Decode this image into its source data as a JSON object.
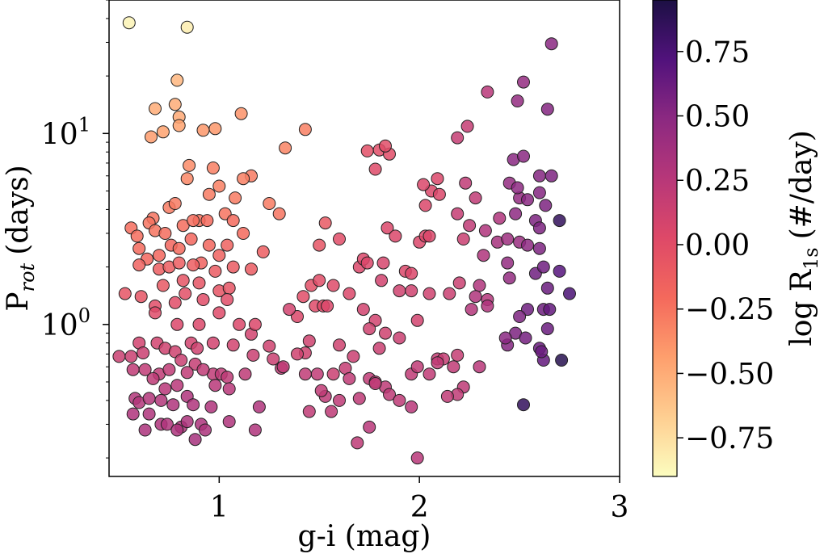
{
  "chart_data": {
    "type": "scatter",
    "title": "",
    "xlabel": "g-i (mag)",
    "ylabel": "P_rot (days)",
    "ylabel_main": "P",
    "ylabel_sub": "rot",
    "ylabel_unit": "(days)",
    "xlim": [
      0.45,
      3.0
    ],
    "ylim": [
      0.16,
      50
    ],
    "yscale": "log",
    "x_ticks": [
      {
        "value": 1,
        "label": "1"
      },
      {
        "value": 2,
        "label": "2"
      },
      {
        "value": 3,
        "label": "3"
      }
    ],
    "y_ticks": [
      {
        "value": 1,
        "label": "10",
        "exp": "0"
      },
      {
        "value": 10,
        "label": "10",
        "exp": "1"
      }
    ],
    "colorbar": {
      "label": "log R_1s (#/day)",
      "label_main": "log R",
      "label_sub": "1s",
      "label_unit": "(#/day)",
      "range": [
        -0.9,
        0.95
      ],
      "colormap": "magma_r",
      "ticks": [
        {
          "value": 0.75,
          "label": "0.75"
        },
        {
          "value": 0.5,
          "label": "0.50"
        },
        {
          "value": 0.25,
          "label": "0.25"
        },
        {
          "value": 0.0,
          "label": "0.00"
        },
        {
          "value": -0.25,
          "label": "−0.25"
        },
        {
          "value": -0.5,
          "label": "−0.50"
        },
        {
          "value": -0.75,
          "label": "−0.75"
        }
      ]
    },
    "points": [
      [
        0.55,
        38,
        -0.85
      ],
      [
        0.84,
        36,
        -0.82
      ],
      [
        0.79,
        19,
        -0.55
      ],
      [
        0.68,
        13.5,
        -0.5
      ],
      [
        0.78,
        14.2,
        -0.5
      ],
      [
        0.8,
        12.2,
        -0.48
      ],
      [
        0.72,
        10.2,
        -0.45
      ],
      [
        0.66,
        9.6,
        -0.42
      ],
      [
        0.8,
        11,
        -0.45
      ],
      [
        0.92,
        10.4,
        -0.4
      ],
      [
        0.98,
        10.6,
        -0.4
      ],
      [
        1.11,
        12.7,
        -0.38
      ],
      [
        1.43,
        10.5,
        -0.3
      ],
      [
        1.33,
        8.4,
        -0.32
      ],
      [
        0.85,
        6.8,
        -0.35
      ],
      [
        0.84,
        5.8,
        -0.33
      ],
      [
        0.97,
        6.6,
        -0.3
      ],
      [
        1.16,
        6,
        -0.28
      ],
      [
        1.12,
        5.8,
        -0.3
      ],
      [
        1.0,
        5.3,
        -0.3
      ],
      [
        0.95,
        4.8,
        -0.28
      ],
      [
        1.08,
        4.6,
        -0.28
      ],
      [
        1.25,
        4.3,
        -0.28
      ],
      [
        1.3,
        3.8,
        -0.25
      ],
      [
        1.03,
        3.8,
        -0.25
      ],
      [
        0.9,
        3.5,
        -0.25
      ],
      [
        0.75,
        4.1,
        -0.28
      ],
      [
        0.78,
        4.3,
        -0.28
      ],
      [
        0.67,
        3.6,
        -0.25
      ],
      [
        0.65,
        3.4,
        -0.25
      ],
      [
        0.56,
        3.2,
        -0.22
      ],
      [
        0.59,
        2.9,
        -0.22
      ],
      [
        0.68,
        3.1,
        -0.25
      ],
      [
        0.73,
        3.0,
        -0.22
      ],
      [
        0.82,
        3.3,
        -0.22
      ],
      [
        0.87,
        3.5,
        -0.22
      ],
      [
        0.94,
        3.5,
        -0.2
      ],
      [
        1.07,
        3.5,
        -0.2
      ],
      [
        1.12,
        3.0,
        -0.2
      ],
      [
        0.6,
        2.5,
        -0.2
      ],
      [
        0.64,
        2.2,
        -0.18
      ],
      [
        0.7,
        2.3,
        -0.18
      ],
      [
        0.76,
        2.6,
        -0.18
      ],
      [
        0.8,
        2.5,
        -0.2
      ],
      [
        0.86,
        2.8,
        -0.18
      ],
      [
        0.95,
        2.6,
        -0.18
      ],
      [
        1.04,
        2.6,
        -0.15
      ],
      [
        1.0,
        2.3,
        -0.15
      ],
      [
        0.91,
        2.1,
        -0.15
      ],
      [
        0.6,
        2.05,
        -0.15
      ],
      [
        0.7,
        1.95,
        -0.12
      ],
      [
        0.75,
        2.0,
        -0.12
      ],
      [
        0.8,
        2.1,
        -0.12
      ],
      [
        0.87,
        2.05,
        -0.12
      ],
      [
        0.98,
        1.9,
        -0.1
      ],
      [
        1.07,
        2.0,
        -0.1
      ],
      [
        1.16,
        1.95,
        -0.1
      ],
      [
        1.22,
        2.4,
        -0.12
      ],
      [
        0.72,
        1.6,
        -0.08
      ],
      [
        0.82,
        1.7,
        -0.05
      ],
      [
        0.9,
        1.65,
        -0.05
      ],
      [
        1.0,
        1.5,
        -0.05
      ],
      [
        1.05,
        1.55,
        -0.05
      ],
      [
        0.61,
        1.4,
        -0.05
      ],
      [
        0.53,
        1.45,
        -0.05
      ],
      [
        0.68,
        1.25,
        0.0
      ],
      [
        0.78,
        1.3,
        0.0
      ],
      [
        0.83,
        1.45,
        -0.02
      ],
      [
        0.92,
        1.35,
        0.0
      ],
      [
        1.04,
        1.35,
        0.0
      ],
      [
        0.68,
        1.15,
        0.02
      ],
      [
        0.79,
        1.0,
        0.05
      ],
      [
        0.9,
        1.0,
        0.05
      ],
      [
        1.0,
        1.15,
        0.02
      ],
      [
        1.1,
        1.0,
        0.05
      ],
      [
        0.6,
        0.8,
        0.1
      ],
      [
        0.69,
        0.8,
        0.1
      ],
      [
        0.73,
        0.75,
        0.12
      ],
      [
        0.78,
        0.72,
        0.12
      ],
      [
        0.86,
        0.8,
        0.1
      ],
      [
        0.89,
        0.75,
        0.12
      ],
      [
        0.97,
        0.8,
        0.1
      ],
      [
        1.07,
        0.78,
        0.1
      ],
      [
        0.56,
        0.68,
        0.15
      ],
      [
        0.62,
        0.71,
        0.15
      ],
      [
        0.5,
        0.68,
        0.15
      ],
      [
        0.81,
        0.65,
        0.15
      ],
      [
        0.88,
        0.62,
        0.18
      ],
      [
        0.97,
        0.55,
        0.2
      ],
      [
        0.57,
        0.58,
        0.2
      ],
      [
        0.63,
        0.58,
        0.2
      ],
      [
        0.7,
        0.55,
        0.2
      ],
      [
        0.67,
        0.52,
        0.22
      ],
      [
        0.75,
        0.58,
        0.2
      ],
      [
        0.84,
        0.56,
        0.2
      ],
      [
        0.92,
        0.58,
        0.2
      ],
      [
        1.01,
        0.55,
        0.22
      ],
      [
        1.04,
        0.53,
        0.22
      ],
      [
        1.13,
        0.55,
        0.22
      ],
      [
        0.79,
        0.48,
        0.25
      ],
      [
        0.73,
        0.46,
        0.25
      ],
      [
        0.98,
        0.48,
        0.25
      ],
      [
        1.05,
        0.46,
        0.25
      ],
      [
        0.58,
        0.41,
        0.28
      ],
      [
        0.6,
        0.39,
        0.28
      ],
      [
        0.65,
        0.41,
        0.28
      ],
      [
        0.71,
        0.4,
        0.28
      ],
      [
        0.77,
        0.38,
        0.3
      ],
      [
        0.84,
        0.42,
        0.3
      ],
      [
        0.87,
        0.38,
        0.3
      ],
      [
        0.96,
        0.37,
        0.3
      ],
      [
        0.57,
        0.34,
        0.3
      ],
      [
        0.65,
        0.34,
        0.3
      ],
      [
        0.71,
        0.3,
        0.3
      ],
      [
        0.74,
        0.3,
        0.3
      ],
      [
        0.81,
        0.29,
        0.32
      ],
      [
        0.84,
        0.31,
        0.32
      ],
      [
        0.91,
        0.3,
        0.32
      ],
      [
        0.63,
        0.28,
        0.32
      ],
      [
        0.79,
        0.28,
        0.32
      ],
      [
        0.93,
        0.28,
        0.32
      ],
      [
        1.05,
        0.31,
        0.3
      ],
      [
        1.18,
        0.28,
        0.3
      ],
      [
        0.88,
        0.25,
        0.35
      ],
      [
        1.2,
        0.37,
        0.3
      ],
      [
        1.17,
        0.69,
        0.15
      ],
      [
        1.25,
        0.77,
        0.12
      ],
      [
        1.16,
        0.89,
        0.1
      ],
      [
        1.27,
        0.66,
        0.15
      ],
      [
        1.31,
        0.59,
        0.2
      ],
      [
        1.32,
        0.6,
        0.2
      ],
      [
        1.18,
        1.0,
        0.05
      ],
      [
        1.39,
        1.1,
        0.05
      ],
      [
        1.42,
        1.4,
        0.0
      ],
      [
        1.46,
        1.6,
        -0.02
      ],
      [
        1.5,
        1.7,
        0.0
      ],
      [
        1.5,
        2.6,
        -0.05
      ],
      [
        1.53,
        3.4,
        -0.08
      ],
      [
        1.48,
        1.25,
        0.02
      ],
      [
        1.52,
        1.25,
        0.02
      ],
      [
        1.57,
        1.6,
        0.02
      ],
      [
        1.6,
        2.8,
        0.0
      ],
      [
        1.65,
        1.45,
        0.05
      ],
      [
        1.7,
        2.0,
        0.05
      ],
      [
        1.72,
        2.2,
        0.05
      ],
      [
        1.74,
        2.1,
        0.05
      ],
      [
        1.6,
        0.78,
        0.12
      ],
      [
        1.67,
        0.68,
        0.15
      ],
      [
        1.63,
        0.59,
        0.18
      ],
      [
        1.65,
        0.52,
        0.2
      ],
      [
        1.49,
        0.55,
        0.2
      ],
      [
        1.43,
        0.55,
        0.2
      ],
      [
        1.53,
        0.42,
        0.22
      ],
      [
        1.6,
        0.4,
        0.22
      ],
      [
        1.7,
        0.41,
        0.22
      ],
      [
        1.75,
        0.29,
        0.25
      ],
      [
        1.72,
        1.2,
        0.1
      ],
      [
        1.78,
        1.05,
        0.1
      ],
      [
        1.75,
        0.95,
        0.12
      ],
      [
        1.8,
        0.75,
        0.15
      ],
      [
        1.83,
        0.9,
        0.12
      ],
      [
        1.9,
        0.85,
        0.15
      ],
      [
        1.75,
        0.52,
        0.2
      ],
      [
        1.78,
        0.5,
        0.22
      ],
      [
        1.83,
        0.47,
        0.22
      ],
      [
        1.85,
        0.43,
        0.22
      ],
      [
        1.9,
        0.4,
        0.22
      ],
      [
        1.96,
        0.37,
        0.25
      ],
      [
        1.96,
        0.55,
        0.2
      ],
      [
        1.99,
        0.6,
        0.2
      ],
      [
        1.99,
        1.05,
        0.1
      ],
      [
        1.93,
        1.9,
        0.05
      ],
      [
        1.96,
        1.85,
        0.05
      ],
      [
        2.0,
        2.7,
        0.05
      ],
      [
        2.03,
        2.9,
        0.05
      ],
      [
        2.05,
        2.9,
        0.05
      ],
      [
        2.06,
        5.0,
        0.05
      ],
      [
        2.09,
        5.8,
        0.05
      ],
      [
        2.02,
        5.4,
        0.05
      ],
      [
        2.03,
        4.2,
        0.05
      ],
      [
        2.1,
        4.8,
        0.05
      ],
      [
        1.8,
        8.2,
        0.0
      ],
      [
        1.74,
        8.1,
        -0.02
      ],
      [
        1.85,
        7.8,
        0.0
      ],
      [
        1.83,
        8.6,
        0.0
      ],
      [
        1.78,
        6.5,
        0.02
      ],
      [
        1.84,
        3.2,
        0.05
      ],
      [
        1.88,
        2.9,
        0.05
      ],
      [
        1.82,
        2.1,
        0.08
      ],
      [
        1.81,
        1.7,
        0.1
      ],
      [
        1.9,
        1.5,
        0.12
      ],
      [
        1.96,
        1.5,
        0.12
      ],
      [
        2.05,
        1.45,
        0.12
      ],
      [
        2.15,
        1.45,
        0.15
      ],
      [
        2.2,
        1.65,
        0.15
      ],
      [
        2.22,
        2.8,
        0.15
      ],
      [
        2.25,
        3.3,
        0.2
      ],
      [
        2.28,
        4.6,
        0.2
      ],
      [
        2.19,
        3.8,
        0.18
      ],
      [
        2.23,
        5.5,
        0.2
      ],
      [
        2.24,
        10.9,
        0.18
      ],
      [
        2.19,
        9.5,
        0.18
      ],
      [
        2.34,
        16.5,
        0.25
      ],
      [
        2.4,
        3.6,
        0.3
      ],
      [
        2.33,
        3.1,
        0.3
      ],
      [
        2.39,
        2.7,
        0.35
      ],
      [
        2.32,
        2.3,
        0.3
      ],
      [
        2.3,
        1.6,
        0.3
      ],
      [
        2.34,
        1.35,
        0.28
      ],
      [
        2.26,
        1.2,
        0.28
      ],
      [
        2.34,
        1.25,
        0.3
      ],
      [
        2.28,
        1.4,
        0.3
      ],
      [
        2.44,
        2.8,
        0.4
      ],
      [
        2.44,
        2.1,
        0.45
      ],
      [
        2.45,
        1.75,
        0.45
      ],
      [
        2.5,
        2.7,
        0.42
      ],
      [
        2.54,
        2.6,
        0.48
      ],
      [
        2.48,
        3.8,
        0.48
      ],
      [
        2.45,
        5.5,
        0.45
      ],
      [
        2.5,
        4.6,
        0.45
      ],
      [
        2.49,
        5.2,
        0.48
      ],
      [
        2.54,
        4.5,
        0.5
      ],
      [
        2.47,
        7.3,
        0.5
      ],
      [
        2.52,
        7.6,
        0.5
      ],
      [
        2.6,
        6.0,
        0.52
      ],
      [
        2.66,
        6.0,
        0.55
      ],
      [
        2.49,
        14.8,
        0.45
      ],
      [
        2.52,
        18.6,
        0.45
      ],
      [
        2.64,
        13.4,
        0.52
      ],
      [
        2.66,
        29.5,
        0.5
      ],
      [
        2.6,
        4.9,
        0.52
      ],
      [
        2.63,
        4.2,
        0.55
      ],
      [
        2.58,
        3.5,
        0.55
      ],
      [
        2.6,
        3.2,
        0.55
      ],
      [
        2.7,
        3.5,
        0.85
      ],
      [
        2.6,
        2.5,
        0.55
      ],
      [
        2.58,
        1.85,
        0.6
      ],
      [
        2.62,
        2.0,
        0.6
      ],
      [
        2.64,
        1.55,
        0.62
      ],
      [
        2.7,
        1.9,
        0.7
      ],
      [
        2.75,
        1.45,
        0.75
      ],
      [
        2.62,
        1.2,
        0.6
      ],
      [
        2.65,
        1.2,
        0.65
      ],
      [
        2.54,
        1.2,
        0.6
      ],
      [
        2.5,
        1.1,
        0.55
      ],
      [
        2.48,
        0.9,
        0.55
      ],
      [
        2.53,
        0.85,
        0.58
      ],
      [
        2.6,
        0.75,
        0.62
      ],
      [
        2.64,
        0.95,
        0.62
      ],
      [
        2.71,
        0.65,
        0.9
      ],
      [
        2.52,
        0.38,
        0.85
      ],
      [
        2.62,
        0.65,
        0.65
      ],
      [
        2.61,
        0.72,
        0.62
      ],
      [
        2.44,
        0.78,
        0.52
      ],
      [
        2.43,
        0.85,
        0.5
      ],
      [
        2.22,
        0.47,
        0.22
      ],
      [
        2.19,
        0.43,
        0.2
      ],
      [
        2.14,
        0.42,
        0.2
      ],
      [
        2.19,
        0.69,
        0.18
      ],
      [
        2.09,
        0.66,
        0.18
      ],
      [
        2.12,
        0.66,
        0.18
      ],
      [
        2.3,
        0.6,
        0.25
      ],
      [
        1.69,
        0.24,
        0.22
      ],
      [
        1.99,
        0.2,
        0.25
      ],
      [
        1.43,
        0.71,
        0.12
      ],
      [
        1.39,
        0.7,
        0.12
      ],
      [
        1.45,
        0.82,
        0.12
      ],
      [
        1.35,
        1.2,
        0.1
      ],
      [
        1.54,
        1.25,
        0.05
      ],
      [
        1.57,
        0.55,
        0.15
      ],
      [
        1.51,
        0.45,
        0.2
      ],
      [
        1.45,
        0.35,
        0.2
      ],
      [
        1.56,
        0.35,
        0.22
      ],
      [
        1.78,
        0.49,
        0.2
      ],
      [
        2.05,
        0.55,
        0.2
      ],
      [
        2.09,
        0.63,
        0.2
      ],
      [
        2.17,
        0.6,
        0.2
      ]
    ]
  }
}
